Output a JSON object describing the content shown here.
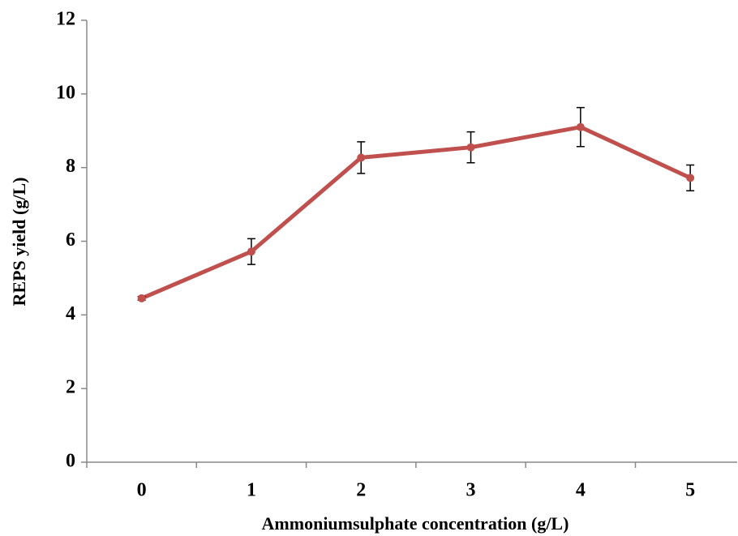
{
  "chart_data": {
    "type": "line",
    "x_label": "Ammoniumsulphate concentration (g/L)",
    "y_label": "REPS yield (g/L)",
    "categories": [
      "0",
      "1",
      "2",
      "3",
      "4",
      "5"
    ],
    "series": [
      {
        "name": "REPS yield",
        "color": "#c0504d",
        "values": [
          4.45,
          5.72,
          8.27,
          8.55,
          9.1,
          7.72
        ],
        "errors": [
          0.05,
          0.35,
          0.43,
          0.42,
          0.53,
          0.35
        ]
      }
    ],
    "ylim": [
      0,
      12
    ],
    "yticks": [
      0,
      2,
      4,
      6,
      8,
      10,
      12
    ],
    "grid": false
  }
}
